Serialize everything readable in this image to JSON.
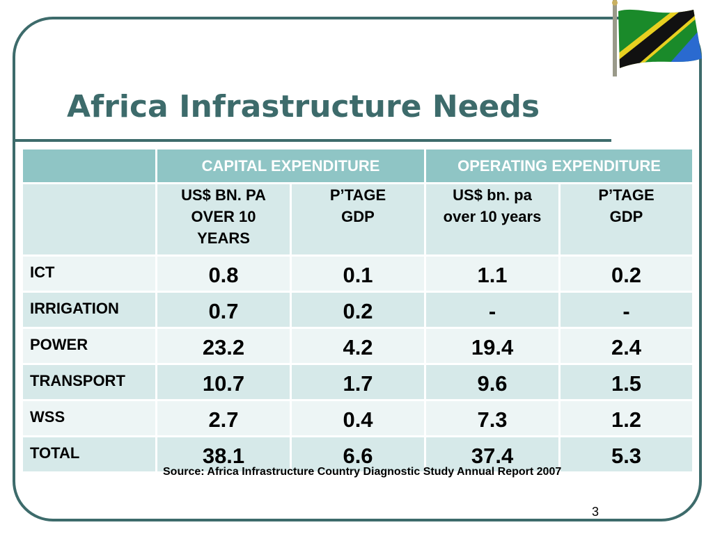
{
  "slide": {
    "title": "Africa Infrastructure Needs",
    "source": "Source: Africa Infrastructure Country Diagnostic Study Annual Report 2007",
    "page_number": "3"
  },
  "colors": {
    "title": "#3d6b6b",
    "frame": "#3d6b6b",
    "header_bg": "#8fc5c5",
    "row_dark": "#d6e9e9",
    "row_light": "#edf5f5"
  },
  "table": {
    "group_headers": [
      "CAPITAL EXPENDITURE",
      "OPERATING EXPENDITURE"
    ],
    "sub_headers": [
      [
        "US$ BN. PA",
        "OVER 10",
        "YEARS"
      ],
      [
        "P’TAGE",
        "GDP"
      ],
      [
        "US$ bn. pa",
        "over 10 years"
      ],
      [
        "P’TAGE",
        "GDP"
      ]
    ],
    "rows": [
      {
        "label": "ICT",
        "values": [
          "0.8",
          "0.1",
          "1.1",
          "0.2"
        ]
      },
      {
        "label": "IRRIGATION",
        "values": [
          "0.7",
          "0.2",
          "-",
          "-"
        ]
      },
      {
        "label": "POWER",
        "values": [
          "23.2",
          "4.2",
          "19.4",
          "2.4"
        ]
      },
      {
        "label": "TRANSPORT",
        "values": [
          "10.7",
          "1.7",
          "9.6",
          "1.5"
        ]
      },
      {
        "label": "WSS",
        "values": [
          "2.7",
          "0.4",
          "7.3",
          "1.2"
        ]
      },
      {
        "label": "TOTAL",
        "values": [
          "38.1",
          "6.6",
          "37.4",
          "5.3"
        ]
      }
    ]
  }
}
